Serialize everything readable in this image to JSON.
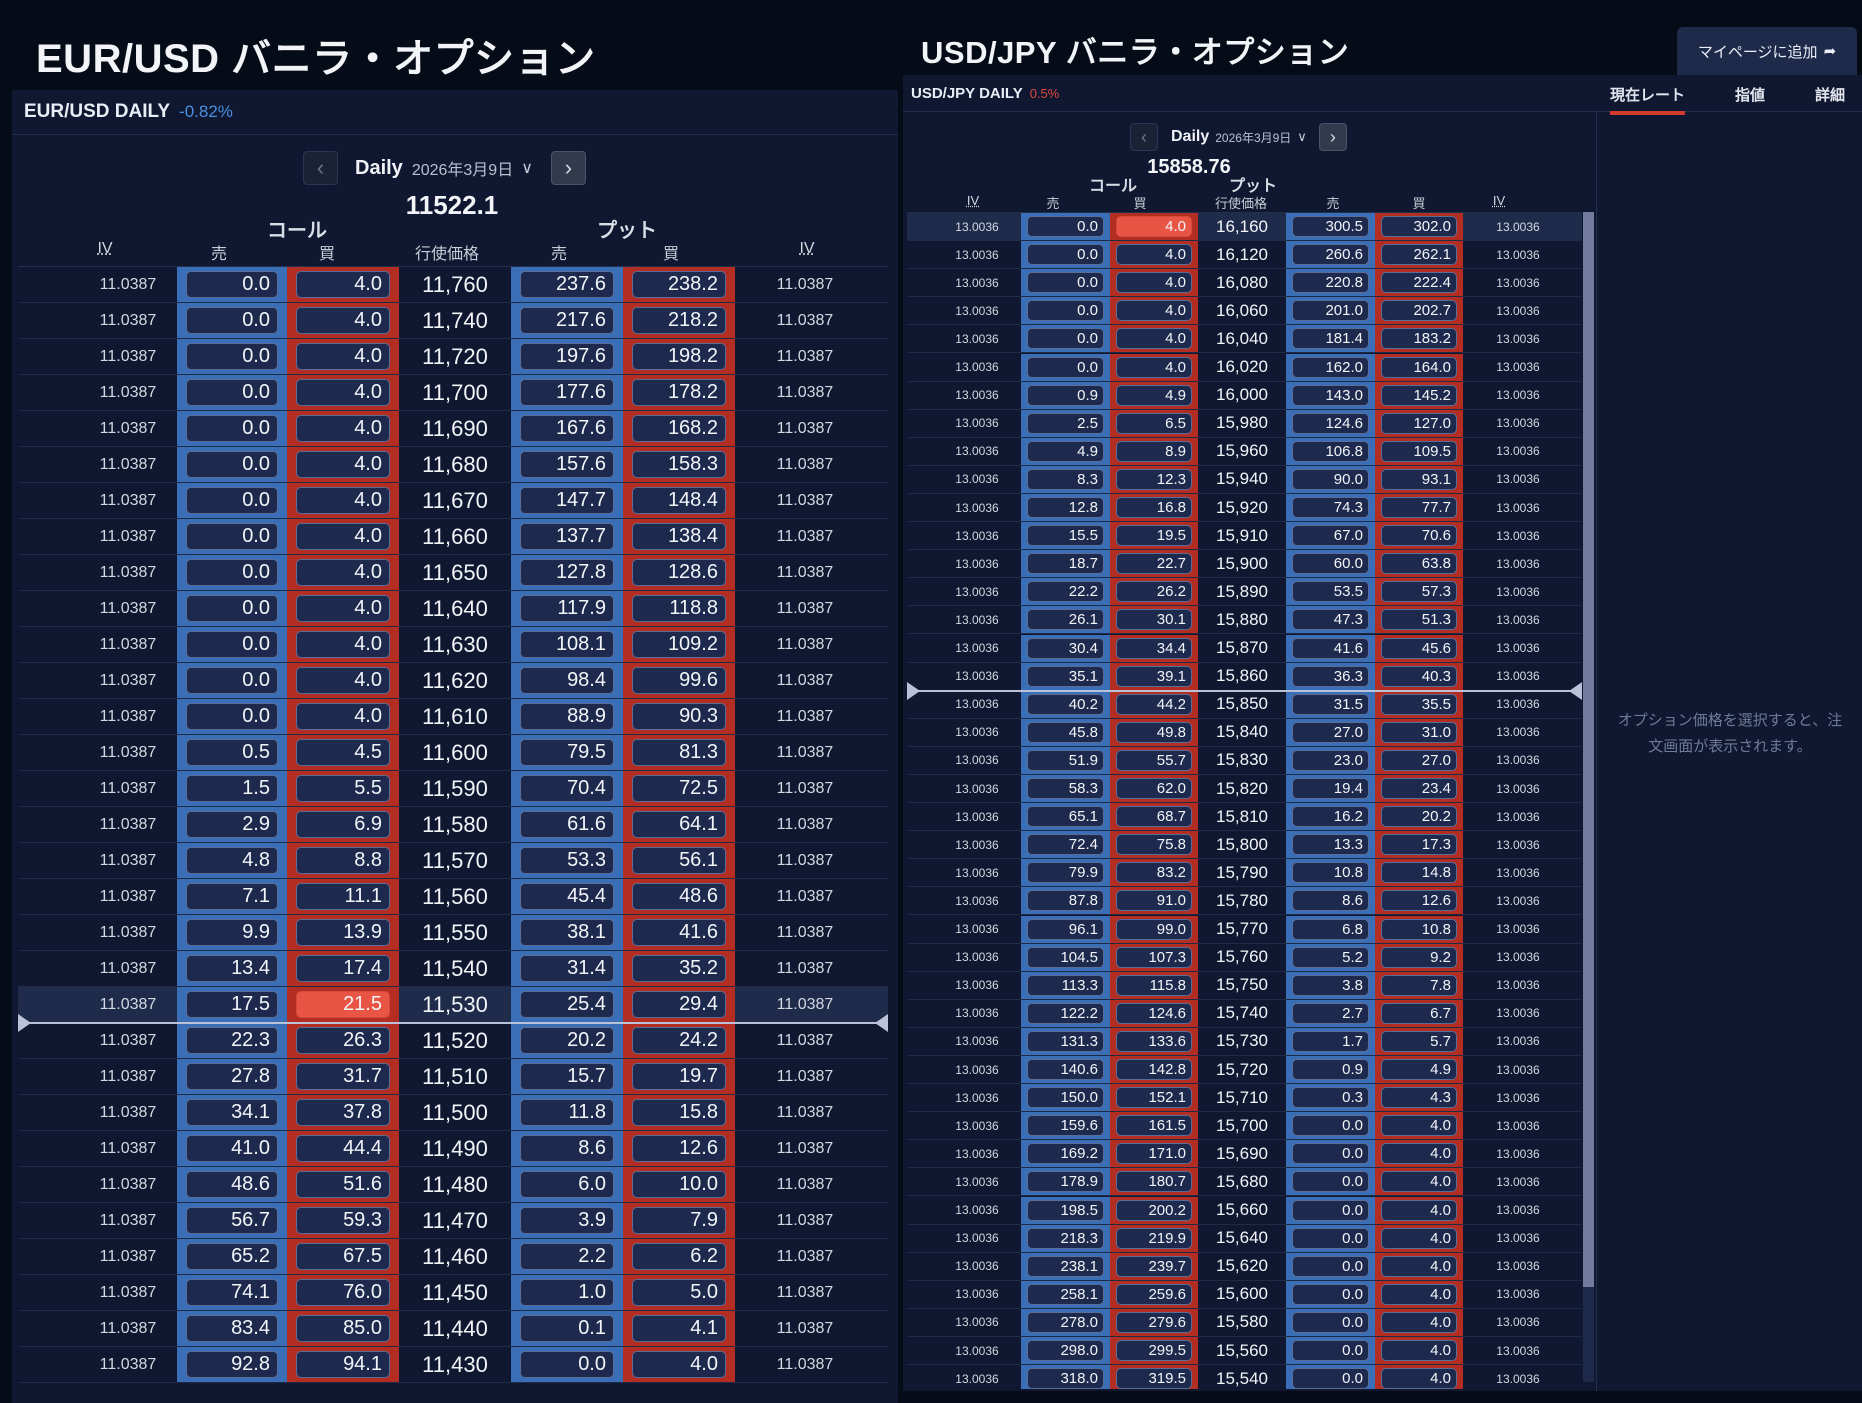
{
  "eur": {
    "title": "EUR/USD バニラ・オプション",
    "symbol": "EUR/USD DAILY",
    "change": "-0.82%",
    "period": "Daily",
    "date": "2026年3月9日",
    "spot": "11522.1",
    "call_label": "コール",
    "put_label": "プット",
    "headers": {
      "iv": "IV",
      "sell": "売",
      "buy": "買",
      "strike": "行使価格"
    },
    "selected": {
      "row": 20,
      "col": "call_buy"
    },
    "rows": [
      {
        "iv": "11.0387",
        "cs": "0.0",
        "cb": "4.0",
        "k": "11,760",
        "ps": "237.6",
        "pb": "238.2",
        "iv2": "11.0387"
      },
      {
        "iv": "11.0387",
        "cs": "0.0",
        "cb": "4.0",
        "k": "11,740",
        "ps": "217.6",
        "pb": "218.2",
        "iv2": "11.0387"
      },
      {
        "iv": "11.0387",
        "cs": "0.0",
        "cb": "4.0",
        "k": "11,720",
        "ps": "197.6",
        "pb": "198.2",
        "iv2": "11.0387"
      },
      {
        "iv": "11.0387",
        "cs": "0.0",
        "cb": "4.0",
        "k": "11,700",
        "ps": "177.6",
        "pb": "178.2",
        "iv2": "11.0387"
      },
      {
        "iv": "11.0387",
        "cs": "0.0",
        "cb": "4.0",
        "k": "11,690",
        "ps": "167.6",
        "pb": "168.2",
        "iv2": "11.0387"
      },
      {
        "iv": "11.0387",
        "cs": "0.0",
        "cb": "4.0",
        "k": "11,680",
        "ps": "157.6",
        "pb": "158.3",
        "iv2": "11.0387"
      },
      {
        "iv": "11.0387",
        "cs": "0.0",
        "cb": "4.0",
        "k": "11,670",
        "ps": "147.7",
        "pb": "148.4",
        "iv2": "11.0387"
      },
      {
        "iv": "11.0387",
        "cs": "0.0",
        "cb": "4.0",
        "k": "11,660",
        "ps": "137.7",
        "pb": "138.4",
        "iv2": "11.0387"
      },
      {
        "iv": "11.0387",
        "cs": "0.0",
        "cb": "4.0",
        "k": "11,650",
        "ps": "127.8",
        "pb": "128.6",
        "iv2": "11.0387"
      },
      {
        "iv": "11.0387",
        "cs": "0.0",
        "cb": "4.0",
        "k": "11,640",
        "ps": "117.9",
        "pb": "118.8",
        "iv2": "11.0387"
      },
      {
        "iv": "11.0387",
        "cs": "0.0",
        "cb": "4.0",
        "k": "11,630",
        "ps": "108.1",
        "pb": "109.2",
        "iv2": "11.0387"
      },
      {
        "iv": "11.0387",
        "cs": "0.0",
        "cb": "4.0",
        "k": "11,620",
        "ps": "98.4",
        "pb": "99.6",
        "iv2": "11.0387"
      },
      {
        "iv": "11.0387",
        "cs": "0.0",
        "cb": "4.0",
        "k": "11,610",
        "ps": "88.9",
        "pb": "90.3",
        "iv2": "11.0387"
      },
      {
        "iv": "11.0387",
        "cs": "0.5",
        "cb": "4.5",
        "k": "11,600",
        "ps": "79.5",
        "pb": "81.3",
        "iv2": "11.0387"
      },
      {
        "iv": "11.0387",
        "cs": "1.5",
        "cb": "5.5",
        "k": "11,590",
        "ps": "70.4",
        "pb": "72.5",
        "iv2": "11.0387"
      },
      {
        "iv": "11.0387",
        "cs": "2.9",
        "cb": "6.9",
        "k": "11,580",
        "ps": "61.6",
        "pb": "64.1",
        "iv2": "11.0387"
      },
      {
        "iv": "11.0387",
        "cs": "4.8",
        "cb": "8.8",
        "k": "11,570",
        "ps": "53.3",
        "pb": "56.1",
        "iv2": "11.0387"
      },
      {
        "iv": "11.0387",
        "cs": "7.1",
        "cb": "11.1",
        "k": "11,560",
        "ps": "45.4",
        "pb": "48.6",
        "iv2": "11.0387"
      },
      {
        "iv": "11.0387",
        "cs": "9.9",
        "cb": "13.9",
        "k": "11,550",
        "ps": "38.1",
        "pb": "41.6",
        "iv2": "11.0387"
      },
      {
        "iv": "11.0387",
        "cs": "13.4",
        "cb": "17.4",
        "k": "11,540",
        "ps": "31.4",
        "pb": "35.2",
        "iv2": "11.0387"
      },
      {
        "iv": "11.0387",
        "cs": "17.5",
        "cb": "21.5",
        "k": "11,530",
        "ps": "25.4",
        "pb": "29.4",
        "iv2": "11.0387"
      },
      {
        "iv": "11.0387",
        "cs": "22.3",
        "cb": "26.3",
        "k": "11,520",
        "ps": "20.2",
        "pb": "24.2",
        "iv2": "11.0387"
      },
      {
        "iv": "11.0387",
        "cs": "27.8",
        "cb": "31.7",
        "k": "11,510",
        "ps": "15.7",
        "pb": "19.7",
        "iv2": "11.0387"
      },
      {
        "iv": "11.0387",
        "cs": "34.1",
        "cb": "37.8",
        "k": "11,500",
        "ps": "11.8",
        "pb": "15.8",
        "iv2": "11.0387"
      },
      {
        "iv": "11.0387",
        "cs": "41.0",
        "cb": "44.4",
        "k": "11,490",
        "ps": "8.6",
        "pb": "12.6",
        "iv2": "11.0387"
      },
      {
        "iv": "11.0387",
        "cs": "48.6",
        "cb": "51.6",
        "k": "11,480",
        "ps": "6.0",
        "pb": "10.0",
        "iv2": "11.0387"
      },
      {
        "iv": "11.0387",
        "cs": "56.7",
        "cb": "59.3",
        "k": "11,470",
        "ps": "3.9",
        "pb": "7.9",
        "iv2": "11.0387"
      },
      {
        "iv": "11.0387",
        "cs": "65.2",
        "cb": "67.5",
        "k": "11,460",
        "ps": "2.2",
        "pb": "6.2",
        "iv2": "11.0387"
      },
      {
        "iv": "11.0387",
        "cs": "74.1",
        "cb": "76.0",
        "k": "11,450",
        "ps": "1.0",
        "pb": "5.0",
        "iv2": "11.0387"
      },
      {
        "iv": "11.0387",
        "cs": "83.4",
        "cb": "85.0",
        "k": "11,440",
        "ps": "0.1",
        "pb": "4.1",
        "iv2": "11.0387"
      },
      {
        "iv": "11.0387",
        "cs": "92.8",
        "cb": "94.1",
        "k": "11,430",
        "ps": "0.0",
        "pb": "4.0",
        "iv2": "11.0387"
      }
    ]
  },
  "jpy": {
    "title": "USD/JPY バニラ・オプション",
    "add_button": "マイページに追加",
    "symbol": "USD/JPY DAILY",
    "change": "0.5%",
    "tabs": [
      {
        "label": "現在レート",
        "active": true
      },
      {
        "label": "指値",
        "active": false
      },
      {
        "label": "詳細",
        "active": false
      }
    ],
    "period": "Daily",
    "date": "2026年3月9日",
    "spot": "15858.76",
    "call_label": "コール",
    "put_label": "プット",
    "headers": {
      "iv": "IV",
      "sell": "売",
      "buy": "買",
      "strike": "行使価格"
    },
    "side_message": "オプション価格を選択すると、注文画面が表示されます。",
    "selected": {
      "row": 0,
      "col": "call_buy"
    },
    "rows": [
      {
        "iv": "13.0036",
        "cs": "0.0",
        "cb": "4.0",
        "k": "16,160",
        "ps": "300.5",
        "pb": "302.0",
        "iv2": "13.0036"
      },
      {
        "iv": "13.0036",
        "cs": "0.0",
        "cb": "4.0",
        "k": "16,120",
        "ps": "260.6",
        "pb": "262.1",
        "iv2": "13.0036"
      },
      {
        "iv": "13.0036",
        "cs": "0.0",
        "cb": "4.0",
        "k": "16,080",
        "ps": "220.8",
        "pb": "222.4",
        "iv2": "13.0036"
      },
      {
        "iv": "13.0036",
        "cs": "0.0",
        "cb": "4.0",
        "k": "16,060",
        "ps": "201.0",
        "pb": "202.7",
        "iv2": "13.0036"
      },
      {
        "iv": "13.0036",
        "cs": "0.0",
        "cb": "4.0",
        "k": "16,040",
        "ps": "181.4",
        "pb": "183.2",
        "iv2": "13.0036"
      },
      {
        "iv": "13.0036",
        "cs": "0.0",
        "cb": "4.0",
        "k": "16,020",
        "ps": "162.0",
        "pb": "164.0",
        "iv2": "13.0036"
      },
      {
        "iv": "13.0036",
        "cs": "0.9",
        "cb": "4.9",
        "k": "16,000",
        "ps": "143.0",
        "pb": "145.2",
        "iv2": "13.0036"
      },
      {
        "iv": "13.0036",
        "cs": "2.5",
        "cb": "6.5",
        "k": "15,980",
        "ps": "124.6",
        "pb": "127.0",
        "iv2": "13.0036"
      },
      {
        "iv": "13.0036",
        "cs": "4.9",
        "cb": "8.9",
        "k": "15,960",
        "ps": "106.8",
        "pb": "109.5",
        "iv2": "13.0036"
      },
      {
        "iv": "13.0036",
        "cs": "8.3",
        "cb": "12.3",
        "k": "15,940",
        "ps": "90.0",
        "pb": "93.1",
        "iv2": "13.0036"
      },
      {
        "iv": "13.0036",
        "cs": "12.8",
        "cb": "16.8",
        "k": "15,920",
        "ps": "74.3",
        "pb": "77.7",
        "iv2": "13.0036"
      },
      {
        "iv": "13.0036",
        "cs": "15.5",
        "cb": "19.5",
        "k": "15,910",
        "ps": "67.0",
        "pb": "70.6",
        "iv2": "13.0036"
      },
      {
        "iv": "13.0036",
        "cs": "18.7",
        "cb": "22.7",
        "k": "15,900",
        "ps": "60.0",
        "pb": "63.8",
        "iv2": "13.0036"
      },
      {
        "iv": "13.0036",
        "cs": "22.2",
        "cb": "26.2",
        "k": "15,890",
        "ps": "53.5",
        "pb": "57.3",
        "iv2": "13.0036"
      },
      {
        "iv": "13.0036",
        "cs": "26.1",
        "cb": "30.1",
        "k": "15,880",
        "ps": "47.3",
        "pb": "51.3",
        "iv2": "13.0036"
      },
      {
        "iv": "13.0036",
        "cs": "30.4",
        "cb": "34.4",
        "k": "15,870",
        "ps": "41.6",
        "pb": "45.6",
        "iv2": "13.0036"
      },
      {
        "iv": "13.0036",
        "cs": "35.1",
        "cb": "39.1",
        "k": "15,860",
        "ps": "36.3",
        "pb": "40.3",
        "iv2": "13.0036"
      },
      {
        "iv": "13.0036",
        "cs": "40.2",
        "cb": "44.2",
        "k": "15,850",
        "ps": "31.5",
        "pb": "35.5",
        "iv2": "13.0036"
      },
      {
        "iv": "13.0036",
        "cs": "45.8",
        "cb": "49.8",
        "k": "15,840",
        "ps": "27.0",
        "pb": "31.0",
        "iv2": "13.0036"
      },
      {
        "iv": "13.0036",
        "cs": "51.9",
        "cb": "55.7",
        "k": "15,830",
        "ps": "23.0",
        "pb": "27.0",
        "iv2": "13.0036"
      },
      {
        "iv": "13.0036",
        "cs": "58.3",
        "cb": "62.0",
        "k": "15,820",
        "ps": "19.4",
        "pb": "23.4",
        "iv2": "13.0036"
      },
      {
        "iv": "13.0036",
        "cs": "65.1",
        "cb": "68.7",
        "k": "15,810",
        "ps": "16.2",
        "pb": "20.2",
        "iv2": "13.0036"
      },
      {
        "iv": "13.0036",
        "cs": "72.4",
        "cb": "75.8",
        "k": "15,800",
        "ps": "13.3",
        "pb": "17.3",
        "iv2": "13.0036"
      },
      {
        "iv": "13.0036",
        "cs": "79.9",
        "cb": "83.2",
        "k": "15,790",
        "ps": "10.8",
        "pb": "14.8",
        "iv2": "13.0036"
      },
      {
        "iv": "13.0036",
        "cs": "87.8",
        "cb": "91.0",
        "k": "15,780",
        "ps": "8.6",
        "pb": "12.6",
        "iv2": "13.0036"
      },
      {
        "iv": "13.0036",
        "cs": "96.1",
        "cb": "99.0",
        "k": "15,770",
        "ps": "6.8",
        "pb": "10.8",
        "iv2": "13.0036"
      },
      {
        "iv": "13.0036",
        "cs": "104.5",
        "cb": "107.3",
        "k": "15,760",
        "ps": "5.2",
        "pb": "9.2",
        "iv2": "13.0036"
      },
      {
        "iv": "13.0036",
        "cs": "113.3",
        "cb": "115.8",
        "k": "15,750",
        "ps": "3.8",
        "pb": "7.8",
        "iv2": "13.0036"
      },
      {
        "iv": "13.0036",
        "cs": "122.2",
        "cb": "124.6",
        "k": "15,740",
        "ps": "2.7",
        "pb": "6.7",
        "iv2": "13.0036"
      },
      {
        "iv": "13.0036",
        "cs": "131.3",
        "cb": "133.6",
        "k": "15,730",
        "ps": "1.7",
        "pb": "5.7",
        "iv2": "13.0036"
      },
      {
        "iv": "13.0036",
        "cs": "140.6",
        "cb": "142.8",
        "k": "15,720",
        "ps": "0.9",
        "pb": "4.9",
        "iv2": "13.0036"
      },
      {
        "iv": "13.0036",
        "cs": "150.0",
        "cb": "152.1",
        "k": "15,710",
        "ps": "0.3",
        "pb": "4.3",
        "iv2": "13.0036"
      },
      {
        "iv": "13.0036",
        "cs": "159.6",
        "cb": "161.5",
        "k": "15,700",
        "ps": "0.0",
        "pb": "4.0",
        "iv2": "13.0036"
      },
      {
        "iv": "13.0036",
        "cs": "169.2",
        "cb": "171.0",
        "k": "15,690",
        "ps": "0.0",
        "pb": "4.0",
        "iv2": "13.0036"
      },
      {
        "iv": "13.0036",
        "cs": "178.9",
        "cb": "180.7",
        "k": "15,680",
        "ps": "0.0",
        "pb": "4.0",
        "iv2": "13.0036"
      },
      {
        "iv": "13.0036",
        "cs": "198.5",
        "cb": "200.2",
        "k": "15,660",
        "ps": "0.0",
        "pb": "4.0",
        "iv2": "13.0036"
      },
      {
        "iv": "13.0036",
        "cs": "218.3",
        "cb": "219.9",
        "k": "15,640",
        "ps": "0.0",
        "pb": "4.0",
        "iv2": "13.0036"
      },
      {
        "iv": "13.0036",
        "cs": "238.1",
        "cb": "239.7",
        "k": "15,620",
        "ps": "0.0",
        "pb": "4.0",
        "iv2": "13.0036"
      },
      {
        "iv": "13.0036",
        "cs": "258.1",
        "cb": "259.6",
        "k": "15,600",
        "ps": "0.0",
        "pb": "4.0",
        "iv2": "13.0036"
      },
      {
        "iv": "13.0036",
        "cs": "278.0",
        "cb": "279.6",
        "k": "15,580",
        "ps": "0.0",
        "pb": "4.0",
        "iv2": "13.0036"
      },
      {
        "iv": "13.0036",
        "cs": "298.0",
        "cb": "299.5",
        "k": "15,560",
        "ps": "0.0",
        "pb": "4.0",
        "iv2": "13.0036"
      },
      {
        "iv": "13.0036",
        "cs": "318.0",
        "cb": "319.5",
        "k": "15,540",
        "ps": "0.0",
        "pb": "4.0",
        "iv2": "13.0036"
      }
    ]
  },
  "colors": {
    "call_band": "#3a6eb6",
    "put_band": "#b42d22",
    "selected": "#e85545",
    "neg_change": "#4a8ee0",
    "pos_change": "#e0473a",
    "tab_underline": "#d33a2e"
  }
}
